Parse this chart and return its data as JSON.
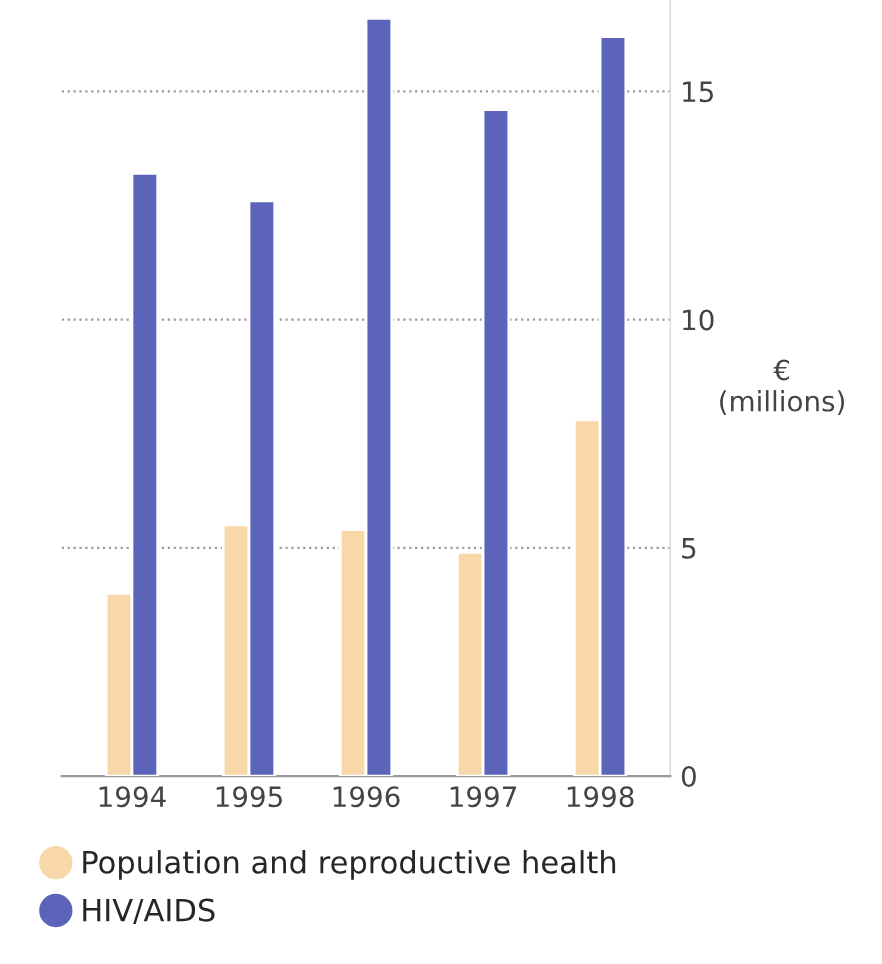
{
  "chart_data": {
    "type": "bar",
    "ylabel": "€\n(millions)",
    "categories": [
      "1994",
      "1995",
      "1996",
      "1997",
      "1998"
    ],
    "series": [
      {
        "name": "Population and reproductive health",
        "color": "#f8d7a8",
        "values": [
          4.0,
          5.5,
          5.4,
          4.9,
          7.8
        ]
      },
      {
        "name": "HIV/AIDS",
        "color": "#5b64b8",
        "values": [
          13.2,
          12.6,
          16.6,
          14.6,
          16.2
        ]
      }
    ],
    "ylim": [
      0,
      17
    ],
    "yticks": [
      0,
      5,
      10,
      15
    ],
    "grid": "y",
    "legend": "bottom left",
    "marker": "circle"
  }
}
